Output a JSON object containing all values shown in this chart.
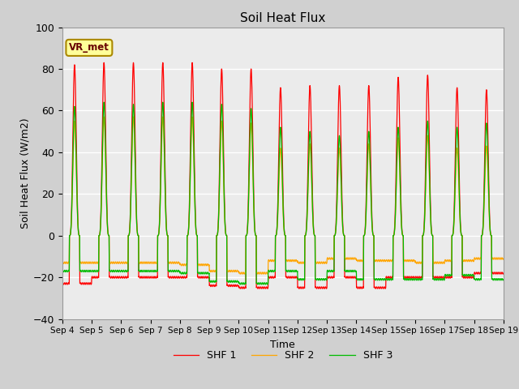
{
  "title": "Soil Heat Flux",
  "xlabel": "Time",
  "ylabel": "Soil Heat Flux (W/m2)",
  "ylim": [
    -40,
    100
  ],
  "yticks": [
    -40,
    -20,
    0,
    20,
    40,
    60,
    80,
    100
  ],
  "series_labels": [
    "SHF 1",
    "SHF 2",
    "SHF 3"
  ],
  "series_colors": [
    "#ff0000",
    "#ffa500",
    "#00bb00"
  ],
  "annotation_text": "VR_met",
  "annotation_bbox_facecolor": "#ffff99",
  "annotation_bbox_edgecolor": "#aa8800",
  "axes_facecolor": "#ebebeb",
  "grid_color": "#ffffff",
  "n_days": 15,
  "start_day": 4,
  "points_per_day": 144,
  "shf1_peaks": [
    82,
    83,
    83,
    83,
    83,
    80,
    80,
    71,
    72,
    72,
    72,
    76,
    77,
    71,
    70
  ],
  "shf1_troughs": [
    -23,
    -20,
    -20,
    -20,
    -20,
    -24,
    -25,
    -20,
    -25,
    -20,
    -25,
    -20,
    -20,
    -20,
    -18
  ],
  "shf2_peaks": [
    55,
    57,
    57,
    57,
    57,
    55,
    54,
    42,
    44,
    42,
    44,
    47,
    48,
    42,
    43
  ],
  "shf2_troughs": [
    -13,
    -13,
    -13,
    -13,
    -14,
    -17,
    -18,
    -12,
    -13,
    -11,
    -12,
    -12,
    -13,
    -12,
    -11
  ],
  "shf3_peaks": [
    62,
    64,
    63,
    64,
    64,
    63,
    61,
    52,
    50,
    48,
    50,
    52,
    55,
    52,
    54
  ],
  "shf3_troughs": [
    -17,
    -17,
    -17,
    -17,
    -18,
    -22,
    -23,
    -17,
    -21,
    -17,
    -21,
    -21,
    -21,
    -19,
    -21
  ]
}
